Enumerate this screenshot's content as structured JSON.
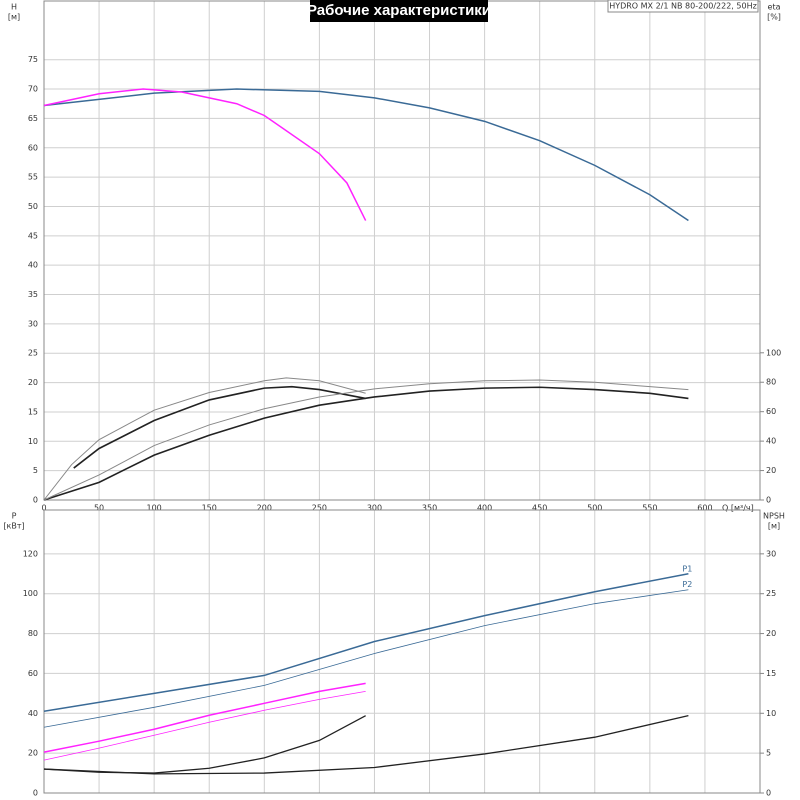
{
  "chart_data": [
    {
      "type": "line",
      "title": "Рабочие характеристики",
      "annotation": "HYDRO MX 2/1 NB 80-200/222, 50Hz",
      "ylabel_lines": [
        "H",
        "[м]"
      ],
      "y2label_lines": [
        "eta",
        "[%]"
      ],
      "xlabel": "Q [м³/ч]",
      "xlim": [
        0,
        650
      ],
      "xticks": [
        0,
        50,
        100,
        150,
        200,
        250,
        300,
        350,
        400,
        450,
        500,
        550,
        600
      ],
      "ylim": [
        0,
        85
      ],
      "yticks": [
        0,
        5,
        10,
        15,
        20,
        25,
        30,
        35,
        40,
        45,
        50,
        55,
        60,
        65,
        70,
        75
      ],
      "y2lim": [
        0,
        339
      ],
      "y2ticks": [
        0,
        20,
        40,
        60,
        80,
        100
      ],
      "grid": true,
      "series": [
        {
          "color": "#3a6a96",
          "linewidth": 1.5,
          "x": [
            0,
            100,
            175,
            250,
            300,
            350,
            400,
            450,
            500,
            550,
            585
          ],
          "values": [
            67.2,
            69.3,
            70.0,
            69.6,
            68.5,
            66.8,
            64.5,
            61.2,
            57.0,
            52.0,
            47.6
          ]
        },
        {
          "color": "#ff22ff",
          "linewidth": 1.5,
          "x": [
            0,
            50,
            90,
            125,
            175,
            200,
            250,
            275,
            292
          ],
          "values": [
            67.2,
            69.2,
            70.0,
            69.5,
            67.5,
            65.5,
            59,
            54,
            47.6
          ]
        },
        {
          "color": "#222222",
          "linewidth": 1.6,
          "axis": "y2",
          "x": [
            27,
            50,
            100,
            150,
            200,
            225,
            250,
            292
          ],
          "values": [
            21.7,
            35,
            54,
            68,
            76,
            77,
            75,
            69
          ]
        },
        {
          "color": "#888888",
          "linewidth": 1,
          "axis": "y2",
          "x": [
            0,
            25,
            50,
            100,
            150,
            200,
            220,
            250,
            292
          ],
          "values": [
            0,
            24,
            41,
            61,
            73,
            81,
            83,
            81,
            72.5
          ]
        },
        {
          "color": "#222222",
          "linewidth": 1.6,
          "axis": "y2",
          "x": [
            0,
            50,
            100,
            150,
            200,
            250,
            300,
            350,
            400,
            450,
            500,
            550,
            585
          ],
          "values": [
            0,
            12,
            30.5,
            44,
            55.6,
            64.4,
            70,
            74,
            76,
            76.6,
            75,
            72.5,
            69
          ]
        },
        {
          "color": "#888888",
          "linewidth": 1,
          "axis": "y2",
          "x": [
            0,
            50,
            100,
            150,
            200,
            250,
            300,
            350,
            400,
            450,
            500,
            550,
            585
          ],
          "values": [
            0,
            17,
            37,
            51,
            62,
            70,
            75.5,
            79,
            81,
            81.5,
            80,
            77,
            75
          ]
        }
      ]
    },
    {
      "type": "line",
      "ylabel_lines": [
        "P",
        "[кВт]"
      ],
      "y2label_lines": [
        "NPSH",
        "[м]"
      ],
      "xlim": [
        0,
        650
      ],
      "ylim": [
        0,
        142
      ],
      "yticks": [
        0,
        20,
        40,
        60,
        80,
        100,
        120
      ],
      "y2lim": [
        0,
        35.5
      ],
      "y2ticks": [
        0,
        5,
        10,
        15,
        20,
        25,
        30
      ],
      "grid": true,
      "series": [
        {
          "name": "P1",
          "color": "#3a6a96",
          "linewidth": 1.5,
          "x": [
            0,
            100,
            200,
            300,
            400,
            500,
            585
          ],
          "values": [
            41,
            50,
            59,
            76,
            89,
            101,
            110
          ]
        },
        {
          "name": "P2",
          "color": "#3a6a96",
          "linewidth": 0.8,
          "x": [
            0,
            100,
            200,
            300,
            400,
            500,
            585
          ],
          "values": [
            33,
            43,
            54,
            70,
            84,
            95,
            102
          ]
        },
        {
          "color": "#ff22ff",
          "linewidth": 1.5,
          "x": [
            0,
            50,
            100,
            150,
            200,
            250,
            292
          ],
          "values": [
            20.5,
            26,
            32,
            39,
            45,
            51,
            55
          ]
        },
        {
          "color": "#ff22ff",
          "linewidth": 0.8,
          "x": [
            0,
            50,
            100,
            150,
            200,
            250,
            292
          ],
          "values": [
            16.5,
            22.5,
            29,
            35.5,
            41.5,
            47,
            51
          ]
        },
        {
          "color": "#222222",
          "linewidth": 1.3,
          "axis": "y2",
          "x": [
            0,
            50,
            100,
            150,
            200,
            250,
            292
          ],
          "values": [
            3.0,
            2.6,
            2.5,
            3.1,
            4.4,
            6.6,
            9.7
          ]
        },
        {
          "color": "#222222",
          "linewidth": 1.3,
          "axis": "y2",
          "x": [
            0,
            100,
            200,
            300,
            400,
            500,
            585
          ],
          "values": [
            3.0,
            2.4,
            2.5,
            3.2,
            4.9,
            7.0,
            9.7
          ]
        }
      ]
    }
  ]
}
